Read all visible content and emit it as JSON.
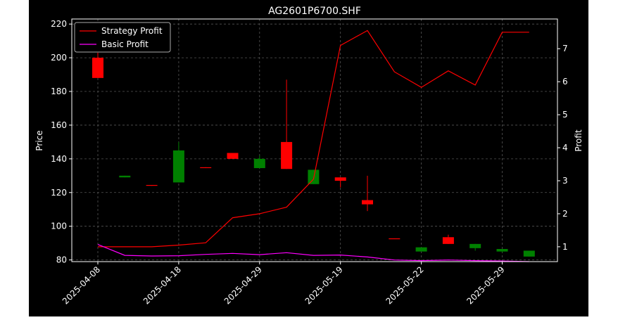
{
  "chart_data": {
    "type": "candlestick",
    "title": "AG2601P6700.SHF",
    "xlabel": "",
    "ylabel_left": "Price",
    "ylabel_right": "Profit",
    "ylim_left": [
      79,
      223
    ],
    "yticks_left": [
      80,
      100,
      120,
      140,
      160,
      180,
      200,
      220
    ],
    "ylim_right": [
      0.55,
      7.9
    ],
    "yticks_right": [
      1,
      2,
      3,
      4,
      5,
      6,
      7
    ],
    "x_ticks": [
      {
        "index": 0,
        "label": "2025-04-08"
      },
      {
        "index": 3,
        "label": "2025-04-18"
      },
      {
        "index": 6,
        "label": "2025-04-29"
      },
      {
        "index": 9,
        "label": "2025-05-19"
      },
      {
        "index": 12,
        "label": "2025-05-22"
      },
      {
        "index": 15,
        "label": "2025-05-29"
      }
    ],
    "grid": true,
    "legend_position": "top-left",
    "colors": {
      "background": "#000000",
      "figure_background": "#ffffff",
      "up": "#ff0000",
      "down": "#008000",
      "strategy": "#ff0000",
      "basic": "#ff00ff",
      "grid": "#555555",
      "axis": "#ffffff"
    },
    "candles": [
      {
        "open": 188,
        "close": 200,
        "high": 203,
        "low": 188
      },
      {
        "open": 130,
        "close": 129,
        "high": 130,
        "low": 129
      },
      {
        "open": 124,
        "close": 124.5,
        "high": 124.5,
        "low": 124
      },
      {
        "open": 145,
        "close": 126,
        "high": 150,
        "low": 126
      },
      {
        "open": 134.5,
        "close": 135,
        "high": 135,
        "low": 134.5
      },
      {
        "open": 140,
        "close": 143.5,
        "high": 143.5,
        "low": 140
      },
      {
        "open": 140,
        "close": 134.5,
        "high": 142,
        "low": 134.5
      },
      {
        "open": 134,
        "close": 150,
        "high": 187,
        "low": 134
      },
      {
        "open": 133.5,
        "close": 125,
        "high": 133.5,
        "low": 125
      },
      {
        "open": 127,
        "close": 129,
        "high": 129,
        "low": 123
      },
      {
        "open": 113,
        "close": 115.5,
        "high": 130,
        "low": 109
      },
      {
        "open": 92.5,
        "close": 92.8,
        "high": 92.8,
        "low": 92.5
      },
      {
        "open": 87.5,
        "close": 85,
        "high": 87.5,
        "low": 85
      },
      {
        "open": 89.5,
        "close": 93.5,
        "high": 95,
        "low": 89.5
      },
      {
        "open": 89.5,
        "close": 87,
        "high": 89.5,
        "low": 85.5
      },
      {
        "open": 86.5,
        "close": 85,
        "high": 86.5,
        "low": 84.5
      },
      {
        "open": 85.5,
        "close": 82,
        "high": 85.5,
        "low": 82
      }
    ],
    "series": [
      {
        "name": "Strategy Profit",
        "color": "#ff0000",
        "x": [
          0,
          1,
          2,
          3,
          4,
          5,
          6,
          7,
          8,
          9,
          10,
          11,
          12,
          13,
          14,
          15,
          16
        ],
        "values": [
          1.0,
          1.0,
          1.0,
          1.05,
          1.12,
          1.88,
          2.0,
          2.2,
          3.05,
          7.1,
          7.55,
          6.3,
          5.83,
          6.33,
          5.9,
          7.5,
          7.5
        ]
      },
      {
        "name": "Basic Profit",
        "color": "#ff00ff",
        "x": [
          0,
          1,
          2,
          3,
          4,
          5,
          6,
          7,
          8,
          9,
          10,
          11,
          12,
          13,
          14,
          15,
          16
        ],
        "values": [
          1.07,
          0.74,
          0.72,
          0.73,
          0.77,
          0.8,
          0.76,
          0.82,
          0.74,
          0.75,
          0.69,
          0.6,
          0.58,
          0.6,
          0.58,
          0.57,
          0.55
        ]
      }
    ]
  }
}
